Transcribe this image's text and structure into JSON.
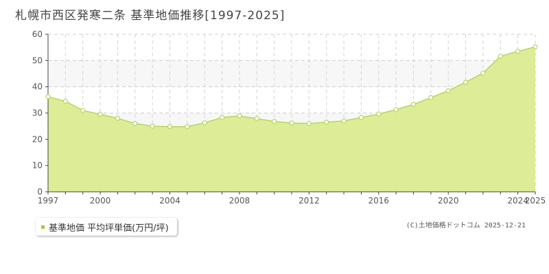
{
  "title": "札幌市西区発寒二条 基準地価推移[1997-2025]",
  "chart_data": {
    "type": "area",
    "xlim": [
      1997,
      2025
    ],
    "ylim": [
      0,
      60
    ],
    "yticks": [
      0,
      10,
      20,
      30,
      40,
      50,
      60
    ],
    "xticks": [
      "1997",
      "2000",
      "2004",
      "2008",
      "2012",
      "2016",
      "2020",
      "2024",
      "2025"
    ],
    "grid": true,
    "legend_position": "bottom-left",
    "x": [
      1997,
      1998,
      1999,
      2000,
      2001,
      2002,
      2003,
      2004,
      2005,
      2006,
      2007,
      2008,
      2009,
      2010,
      2011,
      2012,
      2013,
      2014,
      2015,
      2016,
      2017,
      2018,
      2019,
      2020,
      2021,
      2022,
      2023,
      2024,
      2025
    ],
    "series": [
      {
        "name": "基準地価 平均坪単価(万円/坪)",
        "values": [
          36.2,
          34.5,
          31.0,
          29.5,
          28.0,
          26.0,
          25.0,
          24.8,
          24.8,
          26.3,
          28.3,
          28.9,
          27.9,
          26.8,
          26.2,
          26.0,
          26.5,
          27.0,
          28.3,
          29.6,
          31.3,
          33.3,
          35.9,
          38.5,
          41.7,
          45.2,
          51.6,
          53.5,
          55.2
        ]
      }
    ],
    "colors": {
      "fill": "#dbeb91",
      "line": "#b7d65a",
      "marker_fill": "#ffffff"
    }
  },
  "legend": {
    "label": "基準地価 平均坪単価(万円/坪)",
    "swatch_color": "#a4c93b"
  },
  "copyright": "(C)土地価格ドットコム 2025-12-21"
}
